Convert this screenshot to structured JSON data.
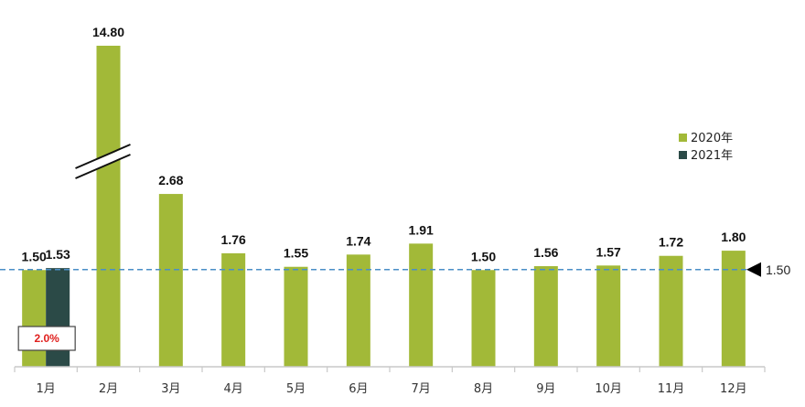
{
  "colors": {
    "series_2020": "#a2b938",
    "series_2021": "#2b4a47",
    "ref_line": "#4a8fc7",
    "axis": "#c8c8c8",
    "change_text": "#e0201e"
  },
  "chart_data": {
    "type": "bar",
    "categories": [
      "1月",
      "2月",
      "3月",
      "4月",
      "5月",
      "6月",
      "7月",
      "8月",
      "9月",
      "10月",
      "11月",
      "12月"
    ],
    "series": [
      {
        "name": "2020年",
        "values": [
          1.5,
          14.8,
          2.68,
          1.76,
          1.55,
          1.74,
          1.91,
          1.5,
          1.56,
          1.57,
          1.72,
          1.8
        ]
      },
      {
        "name": "2021年",
        "values": [
          1.53,
          null,
          null,
          null,
          null,
          null,
          null,
          null,
          null,
          null,
          null,
          null
        ]
      }
    ],
    "value_labels": {
      "2020": [
        "1.50",
        "14.80",
        "2.68",
        "1.76",
        "1.55",
        "1.74",
        "1.91",
        "1.50",
        "1.56",
        "1.57",
        "1.72",
        "1.80"
      ],
      "2021": [
        "1.53"
      ]
    },
    "ylim": [
      0,
      2.68
    ],
    "axis_break": {
      "category": "2月"
    },
    "reference_line": {
      "value": 1.5,
      "label": "1.50",
      "style": "dashed"
    },
    "annotation": {
      "category": "1月",
      "text": "2.0%"
    },
    "legend": {
      "placement": "right",
      "entries": [
        "2020年",
        "2021年"
      ]
    },
    "grid": false
  }
}
